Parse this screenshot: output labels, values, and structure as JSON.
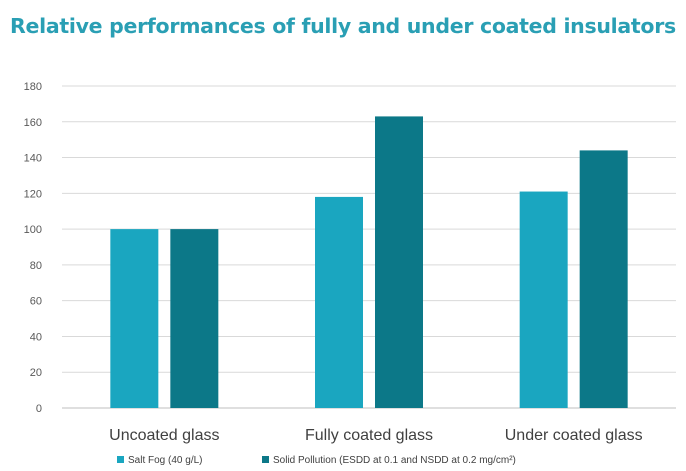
{
  "colors": {
    "title": "#2a9fb4",
    "salt_fog": "#1aa6c0",
    "solid_pollution": "#0c7888",
    "grid": "#d9d9d9",
    "axis": "#bfbfbf"
  },
  "chart_data": {
    "type": "bar",
    "title": "Relative performances of fully and under coated insulators",
    "xlabel": "",
    "ylabel": "",
    "categories": [
      "Uncoated glass",
      "Fully coated glass",
      "Under coated glass"
    ],
    "series": [
      {
        "name": "Salt Fog (40 g/L)",
        "values": [
          100,
          118,
          121
        ]
      },
      {
        "name": "Solid Pollution (ESDD at 0.1 and NSDD at 0.2 mg/cm²)",
        "values": [
          100,
          163,
          144
        ]
      }
    ],
    "ylim": [
      0,
      180
    ],
    "yticks": [
      0,
      20,
      40,
      60,
      80,
      100,
      120,
      140,
      160,
      180
    ],
    "grid": true,
    "legend": "bottom"
  }
}
